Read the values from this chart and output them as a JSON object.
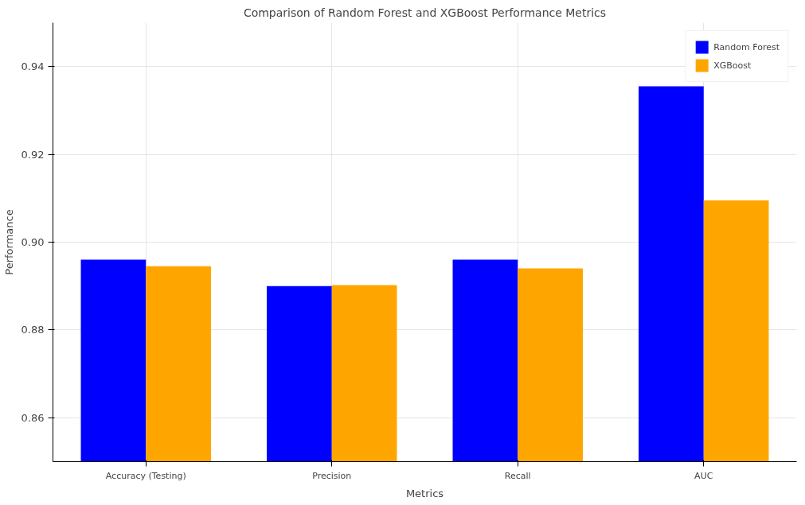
{
  "chart_data": {
    "type": "bar",
    "title": "Comparison of Random Forest and XGBoost Performance Metrics",
    "xlabel": "Metrics",
    "ylabel": "Performance",
    "categories": [
      "Accuracy (Testing)",
      "Precision",
      "Recall",
      "AUC"
    ],
    "series": [
      {
        "name": "Random Forest",
        "color": "#0000ff",
        "values": [
          0.896,
          0.89,
          0.896,
          0.9355
        ]
      },
      {
        "name": "XGBoost",
        "color": "#ffa500",
        "values": [
          0.8945,
          0.8902,
          0.894,
          0.9095
        ]
      }
    ],
    "ylim": [
      0.85,
      0.95
    ],
    "yticks": [
      0.86,
      0.88,
      {
        "value": 0.9,
        "label": "0.90"
      },
      0.92,
      0.94
    ],
    "grid": true,
    "legend": "top right"
  }
}
